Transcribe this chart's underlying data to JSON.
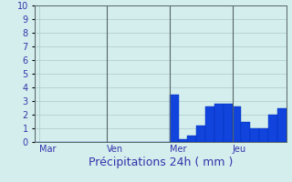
{
  "title": "",
  "xlabel": "Précipitations 24h ( mm )",
  "ylim": [
    0,
    10
  ],
  "yticks": [
    0,
    1,
    2,
    3,
    4,
    5,
    6,
    7,
    8,
    9,
    10
  ],
  "background_color": "#d4eeed",
  "bar_color": "#1144dd",
  "bar_edge_color": "#0030bb",
  "grid_color": "#aacaca",
  "text_color": "#3333aa",
  "day_labels": [
    "Mar",
    "Ven",
    "Mer",
    "Jeu"
  ],
  "bar_values": [
    0,
    0,
    0,
    0,
    0,
    0,
    0,
    0,
    0,
    0,
    0,
    0,
    0,
    0,
    0,
    3.5,
    0.2,
    0.5,
    1.2,
    2.6,
    2.8,
    2.8,
    2.6,
    1.5,
    1.0,
    1.0,
    2.0,
    2.5
  ],
  "xlabel_fontsize": 9,
  "tick_fontsize": 7,
  "n_bars": 28
}
